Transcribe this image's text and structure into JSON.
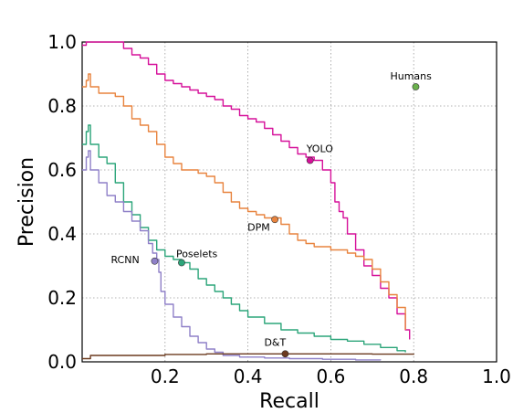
{
  "chart_data": {
    "type": "line",
    "title": "",
    "xlabel": "Recall",
    "ylabel": "Precision",
    "xlim": [
      0.0,
      1.0
    ],
    "ylim": [
      0.0,
      1.0
    ],
    "xticks": [
      "0.2",
      "0.4",
      "0.6",
      "0.8",
      "1.0"
    ],
    "yticks": [
      "0.0",
      "0.2",
      "0.4",
      "0.6",
      "0.8",
      "1.0"
    ],
    "grid": true,
    "series": [
      {
        "name": "YOLO",
        "color": "#d6119a",
        "x": [
          0.0,
          0.01,
          0.02,
          0.04,
          0.06,
          0.08,
          0.09,
          0.1,
          0.12,
          0.14,
          0.16,
          0.18,
          0.2,
          0.22,
          0.24,
          0.26,
          0.28,
          0.3,
          0.32,
          0.34,
          0.36,
          0.38,
          0.4,
          0.42,
          0.44,
          0.46,
          0.48,
          0.5,
          0.52,
          0.54,
          0.56,
          0.57,
          0.58,
          0.6,
          0.61,
          0.62,
          0.63,
          0.64,
          0.66,
          0.68,
          0.7,
          0.72,
          0.74,
          0.76,
          0.78,
          0.79
        ],
        "y": [
          0.99,
          1.0,
          1.0,
          1.0,
          1.0,
          1.0,
          1.0,
          0.98,
          0.96,
          0.95,
          0.93,
          0.9,
          0.88,
          0.87,
          0.86,
          0.85,
          0.84,
          0.83,
          0.82,
          0.8,
          0.79,
          0.77,
          0.76,
          0.75,
          0.73,
          0.71,
          0.69,
          0.67,
          0.65,
          0.64,
          0.63,
          0.63,
          0.6,
          0.56,
          0.5,
          0.47,
          0.45,
          0.4,
          0.35,
          0.3,
          0.27,
          0.23,
          0.2,
          0.15,
          0.1,
          0.07
        ]
      },
      {
        "name": "DPM",
        "color": "#e8843f",
        "x": [
          0.0,
          0.01,
          0.015,
          0.02,
          0.04,
          0.06,
          0.08,
          0.1,
          0.12,
          0.14,
          0.16,
          0.18,
          0.2,
          0.22,
          0.24,
          0.26,
          0.28,
          0.3,
          0.32,
          0.34,
          0.36,
          0.38,
          0.4,
          0.42,
          0.44,
          0.46,
          0.48,
          0.5,
          0.52,
          0.54,
          0.56,
          0.6,
          0.64,
          0.66,
          0.68,
          0.7,
          0.72,
          0.74,
          0.76,
          0.78
        ],
        "y": [
          0.86,
          0.88,
          0.9,
          0.86,
          0.84,
          0.84,
          0.83,
          0.8,
          0.76,
          0.74,
          0.72,
          0.68,
          0.64,
          0.62,
          0.6,
          0.6,
          0.59,
          0.58,
          0.56,
          0.53,
          0.5,
          0.48,
          0.47,
          0.46,
          0.45,
          0.45,
          0.43,
          0.4,
          0.38,
          0.37,
          0.36,
          0.35,
          0.34,
          0.33,
          0.32,
          0.29,
          0.25,
          0.21,
          0.17,
          0.1
        ]
      },
      {
        "name": "Poselets",
        "color": "#2ca57a",
        "x": [
          0.0,
          0.01,
          0.015,
          0.02,
          0.04,
          0.06,
          0.08,
          0.1,
          0.12,
          0.14,
          0.16,
          0.18,
          0.2,
          0.22,
          0.24,
          0.26,
          0.28,
          0.3,
          0.32,
          0.34,
          0.36,
          0.38,
          0.4,
          0.44,
          0.48,
          0.52,
          0.56,
          0.6,
          0.64,
          0.68,
          0.72,
          0.76,
          0.78
        ],
        "y": [
          0.68,
          0.72,
          0.74,
          0.68,
          0.64,
          0.62,
          0.56,
          0.5,
          0.46,
          0.42,
          0.38,
          0.35,
          0.33,
          0.32,
          0.31,
          0.29,
          0.26,
          0.24,
          0.22,
          0.2,
          0.18,
          0.16,
          0.14,
          0.12,
          0.1,
          0.09,
          0.08,
          0.07,
          0.065,
          0.055,
          0.045,
          0.035,
          0.03
        ]
      },
      {
        "name": "RCNN",
        "color": "#8f80c8",
        "x": [
          0.0,
          0.01,
          0.015,
          0.02,
          0.04,
          0.06,
          0.08,
          0.1,
          0.12,
          0.14,
          0.16,
          0.17,
          0.18,
          0.185,
          0.19,
          0.2,
          0.22,
          0.24,
          0.26,
          0.28,
          0.3,
          0.32,
          0.34,
          0.38,
          0.44,
          0.5,
          0.58,
          0.66,
          0.72
        ],
        "y": [
          0.6,
          0.64,
          0.66,
          0.6,
          0.56,
          0.52,
          0.5,
          0.47,
          0.44,
          0.41,
          0.37,
          0.34,
          0.32,
          0.28,
          0.22,
          0.18,
          0.14,
          0.11,
          0.08,
          0.06,
          0.04,
          0.03,
          0.02,
          0.015,
          0.012,
          0.01,
          0.008,
          0.006,
          0.005
        ]
      },
      {
        "name": "D&T",
        "color": "#6b3a1f",
        "x": [
          0.0,
          0.02,
          0.05,
          0.1,
          0.2,
          0.3,
          0.4,
          0.49,
          0.6,
          0.7,
          0.8
        ],
        "y": [
          0.01,
          0.02,
          0.02,
          0.02,
          0.023,
          0.025,
          0.025,
          0.025,
          0.025,
          0.024,
          0.022
        ]
      }
    ],
    "points": [
      {
        "name": "Humans",
        "x": 0.805,
        "y": 0.86,
        "color": "#6ab04c"
      },
      {
        "name": "YOLO",
        "x": 0.55,
        "y": 0.63,
        "color": "#d6119a"
      },
      {
        "name": "DPM",
        "x": 0.465,
        "y": 0.445,
        "color": "#e8843f"
      },
      {
        "name": "Poselets",
        "x": 0.24,
        "y": 0.31,
        "color": "#2ca57a"
      },
      {
        "name": "RCNN",
        "x": 0.175,
        "y": 0.315,
        "color": "#8f80c8"
      },
      {
        "name": "D&T",
        "x": 0.49,
        "y": 0.025,
        "color": "#6b3a1f"
      }
    ]
  }
}
